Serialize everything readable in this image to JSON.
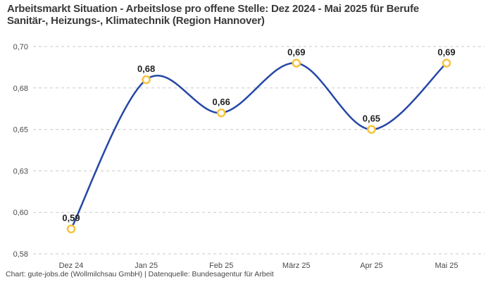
{
  "chart_data": {
    "type": "line",
    "title": "Arbeitsmarkt Situation - Arbeitslose pro offene Stelle: Dez 2024 - Mai 2025 für Berufe Sanitär-, Heizungs-, Klimatechnik (Region Hannover)",
    "categories": [
      "Dez 24",
      "Jan 25",
      "Feb 25",
      "März 25",
      "Apr 25",
      "Mai 25"
    ],
    "values": [
      0.59,
      0.68,
      0.66,
      0.69,
      0.65,
      0.69
    ],
    "point_labels": [
      "0,59",
      "0,68",
      "0,66",
      "0,69",
      "0,65",
      "0,69"
    ],
    "xlabel": "",
    "ylabel": "",
    "ylim": [
      0.575,
      0.7
    ],
    "y_ticks": [
      {
        "value": 0.575,
        "label": "0,58"
      },
      {
        "value": 0.6,
        "label": "0,60"
      },
      {
        "value": 0.625,
        "label": "0,63"
      },
      {
        "value": 0.65,
        "label": "0,65"
      },
      {
        "value": 0.675,
        "label": "0,68"
      },
      {
        "value": 0.7,
        "label": "0,70"
      }
    ],
    "grid": "horizontal-dashed",
    "legend": "none",
    "curve": "smooth-spline",
    "colors": {
      "line": "#2547a6",
      "marker_stroke": "#f8c33c",
      "marker_fill": "#ffffff",
      "grid": "#c9c9c9",
      "tick_text": "#4a4a4a",
      "point_label": "#1f1f1f",
      "title_text": "#3a3a3a",
      "footer_text": "#454545"
    }
  },
  "footer": {
    "source": "Chart: gute-jobs.de (Wollmilchsau GmbH) | Datenquelle: Bundesagentur für Arbeit"
  }
}
